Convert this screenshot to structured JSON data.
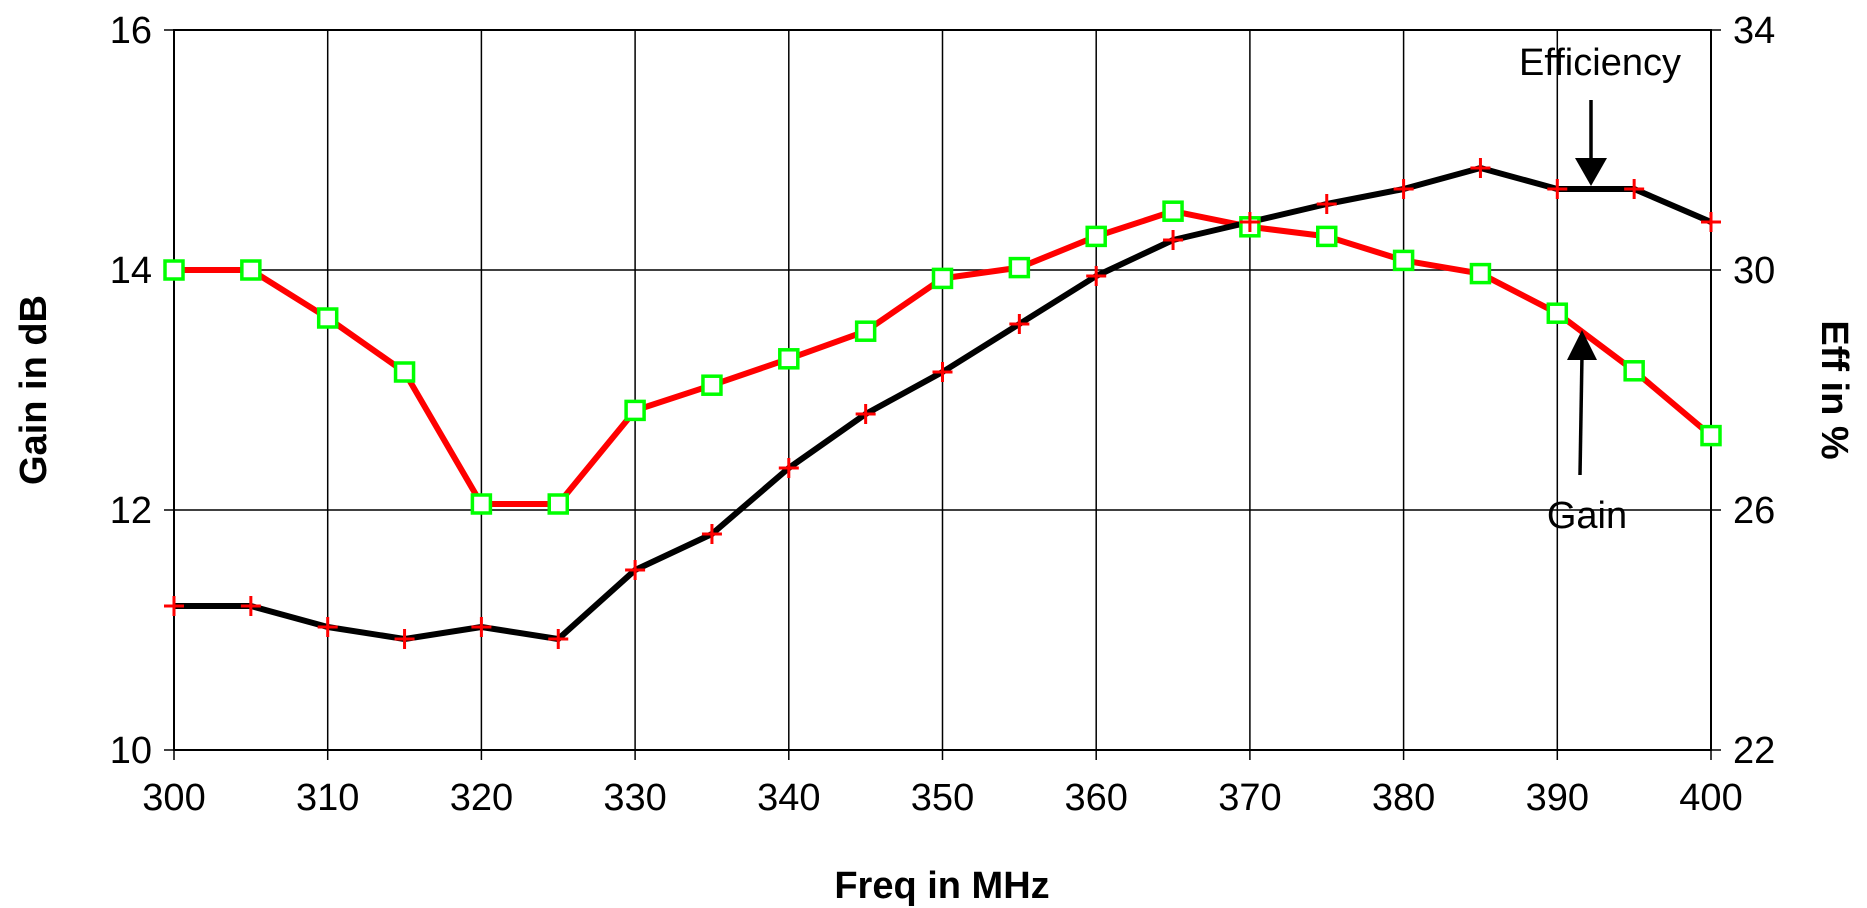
{
  "chart_data": {
    "type": "line",
    "title": "",
    "xlabel": "Freq in MHz",
    "ylabel_left": "Gain in dB",
    "ylabel_right": "Eff in %",
    "xlim": [
      300,
      400
    ],
    "ylim_left": [
      10,
      16
    ],
    "ylim_right": [
      22,
      34
    ],
    "x_ticks": [
      "300",
      "310",
      "320",
      "330",
      "340",
      "350",
      "360",
      "370",
      "380",
      "390",
      "400"
    ],
    "y_ticks_left": [
      "10",
      "12",
      "14",
      "16"
    ],
    "y_ticks_right": [
      "22",
      "26",
      "30",
      "34"
    ],
    "grid": true,
    "legend": "none",
    "x": [
      300,
      305,
      310,
      315,
      320,
      325,
      330,
      335,
      340,
      345,
      350,
      355,
      360,
      365,
      370,
      375,
      380,
      385,
      390,
      395,
      400
    ],
    "series": [
      {
        "name": "Gain",
        "axis": "left",
        "line_color": "#ff0000",
        "marker": "square",
        "marker_color": "#00ff00",
        "values": [
          14.0,
          14.0,
          13.6,
          13.15,
          12.05,
          12.05,
          12.83,
          13.04,
          13.26,
          13.49,
          13.93,
          14.02,
          14.28,
          14.49,
          14.36,
          14.28,
          14.08,
          13.97,
          13.64,
          13.16,
          12.62
        ]
      },
      {
        "name": "Efficiency",
        "axis": "right",
        "line_color": "#000000",
        "marker": "plus",
        "marker_color": "#ff0000",
        "values": [
          24.4,
          24.4,
          24.05,
          23.85,
          24.05,
          23.85,
          25.0,
          25.6,
          26.7,
          27.6,
          28.3,
          29.1,
          29.9,
          30.5,
          30.8,
          31.1,
          31.35,
          31.7,
          31.35,
          31.35,
          30.8
        ]
      }
    ],
    "annotations": [
      {
        "text": "Efficiency",
        "points_to": "Efficiency"
      },
      {
        "text": "Gain",
        "points_to": "Gain"
      }
    ]
  }
}
